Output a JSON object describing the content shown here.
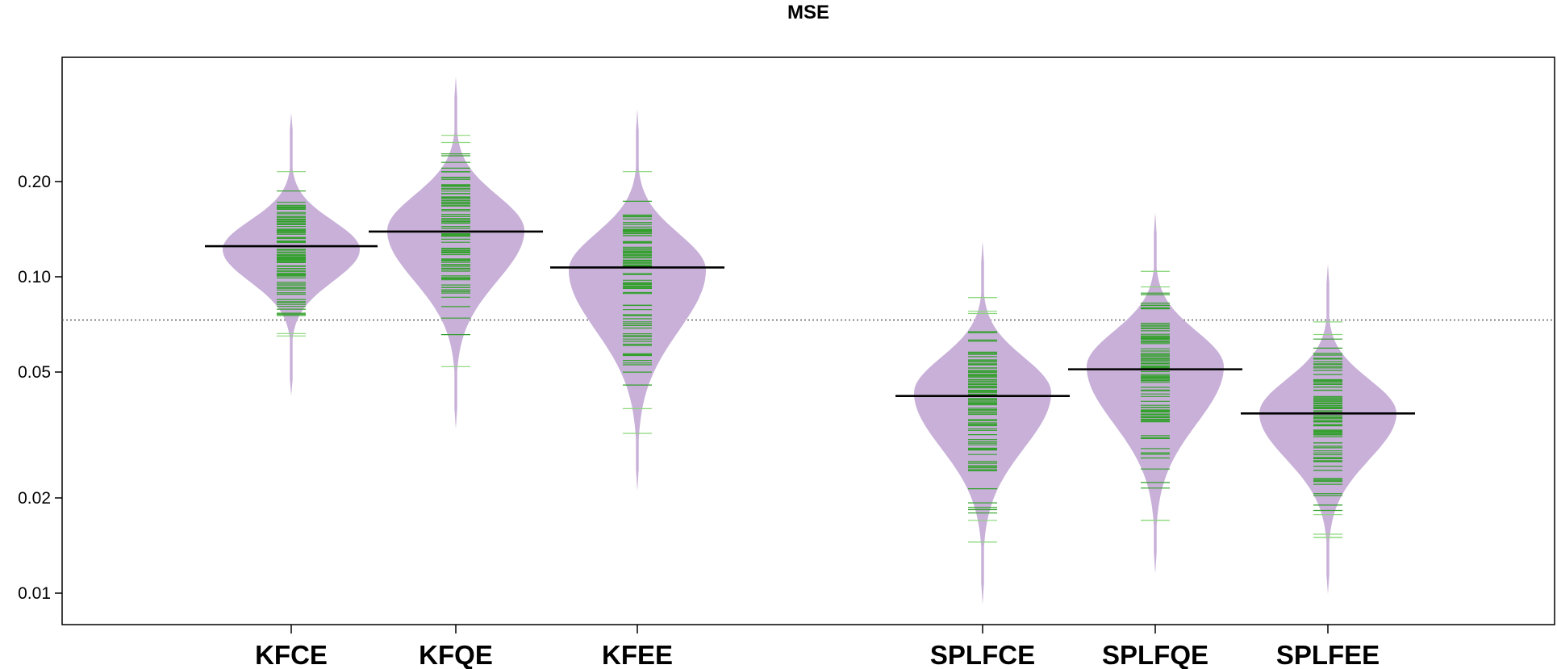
{
  "chart_data": {
    "type": "beanplot",
    "title": "MSE",
    "xlabel": "",
    "ylabel": "",
    "y_scale": "log",
    "ylim": [
      0.008,
      0.5
    ],
    "y_ticks": [
      0.01,
      0.02,
      0.05,
      0.1,
      0.2
    ],
    "y_tick_labels": [
      "0.01",
      "0.02",
      "0.05",
      "0.10",
      "0.20"
    ],
    "reference_line": 0.073,
    "categories": [
      "KFCE",
      "KFQE",
      "KFEE",
      "SPLFCE",
      "SPLFQE",
      "SPLFEE"
    ],
    "group_gap_after": "KFEE",
    "series": [
      {
        "name": "KFCE",
        "mean": 0.125,
        "median": 0.122,
        "min": 0.042,
        "max": 0.33,
        "obs_min": 0.065,
        "obs_max": 0.215
      },
      {
        "name": "KFQE",
        "mean": 0.139,
        "median": 0.14,
        "min": 0.033,
        "max": 0.43,
        "obs_min": 0.052,
        "obs_max": 0.28
      },
      {
        "name": "KFEE",
        "mean": 0.107,
        "median": 0.105,
        "min": 0.021,
        "max": 0.34,
        "obs_min": 0.032,
        "obs_max": 0.215
      },
      {
        "name": "SPLFCE",
        "mean": 0.042,
        "median": 0.043,
        "min": 0.0092,
        "max": 0.13,
        "obs_min": 0.0145,
        "obs_max": 0.086
      },
      {
        "name": "SPLFQE",
        "mean": 0.051,
        "median": 0.052,
        "min": 0.0115,
        "max": 0.16,
        "obs_min": 0.017,
        "obs_max": 0.104
      },
      {
        "name": "SPLFEE",
        "mean": 0.037,
        "median": 0.037,
        "min": 0.0099,
        "max": 0.11,
        "obs_min": 0.015,
        "obs_max": 0.072
      }
    ],
    "colors": {
      "bean_fill": "#c8b0d8",
      "bean_line": "#33a02c",
      "bean_line_light": "#8ad67a",
      "mean_line": "#000000",
      "reference": "#555555"
    }
  }
}
